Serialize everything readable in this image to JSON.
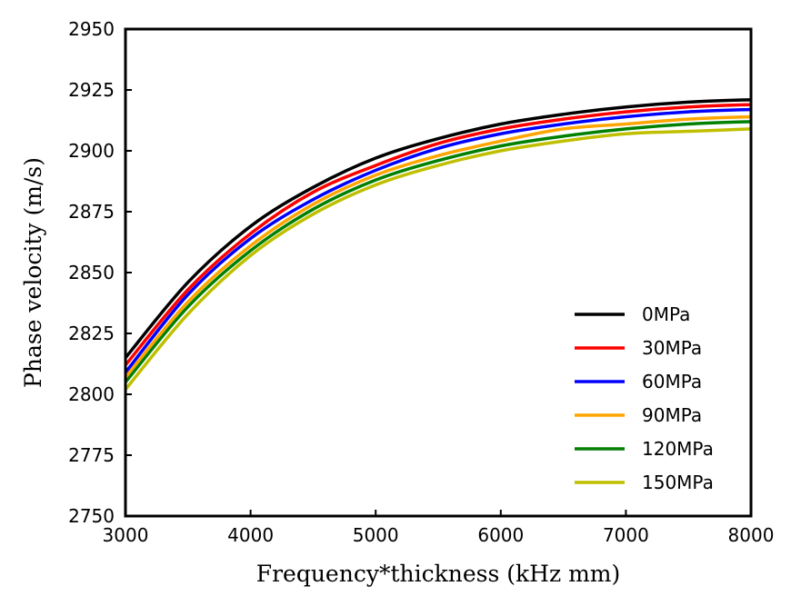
{
  "chart_data": {
    "type": "line",
    "title": "",
    "xlabel": "Frequency*thickness (kHz mm)",
    "ylabel": "Phase velocity (m/s)",
    "xlim": [
      3000,
      8000
    ],
    "ylim": [
      2750,
      2950
    ],
    "xticks": [
      3000,
      4000,
      5000,
      6000,
      7000,
      8000
    ],
    "yticks": [
      2750,
      2775,
      2800,
      2825,
      2850,
      2875,
      2900,
      2925,
      2950
    ],
    "grid": false,
    "legend_position": "lower-right",
    "x": [
      3000,
      3500,
      4000,
      4500,
      5000,
      5500,
      6000,
      6500,
      7000,
      7500,
      8000
    ],
    "series": [
      {
        "name": "0MPa",
        "color": "#000000",
        "values": [
          2815,
          2846,
          2869,
          2885,
          2897,
          2905,
          2911,
          2915,
          2918,
          2920,
          2921
        ]
      },
      {
        "name": "30MPa",
        "color": "#ff0000",
        "values": [
          2812,
          2843,
          2866,
          2883,
          2894,
          2903,
          2909,
          2913,
          2916,
          2918,
          2919
        ]
      },
      {
        "name": "60MPa",
        "color": "#0000ff",
        "values": [
          2809,
          2841,
          2864,
          2880,
          2892,
          2901,
          2907,
          2911,
          2914,
          2916,
          2917
        ]
      },
      {
        "name": "90MPa",
        "color": "#ffa500",
        "values": [
          2807,
          2838,
          2861,
          2878,
          2890,
          2898,
          2904,
          2909,
          2911,
          2913,
          2914
        ]
      },
      {
        "name": "120MPa",
        "color": "#008000",
        "values": [
          2805,
          2836,
          2859,
          2876,
          2888,
          2896,
          2902,
          2906,
          2909,
          2911,
          2912
        ]
      },
      {
        "name": "150MPa",
        "color": "#bfbf00",
        "values": [
          2802,
          2833,
          2857,
          2874,
          2886,
          2894,
          2900,
          2904,
          2907,
          2908,
          2909
        ]
      }
    ]
  }
}
